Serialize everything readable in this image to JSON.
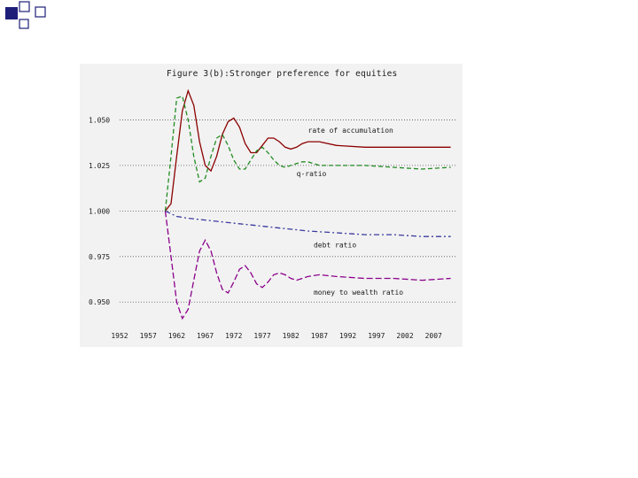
{
  "colors": {
    "slide_square_dark": "#1f1f7a",
    "slide_square_light": "#ffffff",
    "panel": "#f2f2f2"
  },
  "chart_data": {
    "type": "line",
    "title": "Figure 3(b):Stronger preference for equities",
    "xlabel": "",
    "ylabel": "",
    "xlim": [
      1952,
      2011
    ],
    "ylim": [
      0.937,
      1.075
    ],
    "x_ticks": [
      "1952",
      "1957",
      "1962",
      "1967",
      "1972",
      "1977",
      "1982",
      "1987",
      "1992",
      "1997",
      "2002",
      "2007"
    ],
    "y_ticks": [
      {
        "value": 1.05,
        "label": "1.050"
      },
      {
        "value": 1.025,
        "label": "1.025"
      },
      {
        "value": 1.0,
        "label": "1.000"
      },
      {
        "value": 0.975,
        "label": "0.975"
      },
      {
        "value": 0.95,
        "label": "0.950"
      }
    ],
    "grid": "horizontal",
    "series": [
      {
        "name": "rate of accumulation",
        "color": "#8b0000",
        "dash": "",
        "label_at": [
          1985,
          1.043
        ],
        "points": [
          [
            1960,
            1.0
          ],
          [
            1961,
            1.004
          ],
          [
            1962,
            1.03
          ],
          [
            1963,
            1.055
          ],
          [
            1964,
            1.066
          ],
          [
            1965,
            1.058
          ],
          [
            1966,
            1.038
          ],
          [
            1967,
            1.025
          ],
          [
            1968,
            1.022
          ],
          [
            1969,
            1.03
          ],
          [
            1970,
            1.042
          ],
          [
            1971,
            1.049
          ],
          [
            1972,
            1.051
          ],
          [
            1973,
            1.046
          ],
          [
            1974,
            1.037
          ],
          [
            1975,
            1.032
          ],
          [
            1976,
            1.032
          ],
          [
            1977,
            1.036
          ],
          [
            1978,
            1.04
          ],
          [
            1979,
            1.04
          ],
          [
            1980,
            1.038
          ],
          [
            1981,
            1.035
          ],
          [
            1982,
            1.034
          ],
          [
            1983,
            1.035
          ],
          [
            1984,
            1.037
          ],
          [
            1985,
            1.038
          ],
          [
            1987,
            1.038
          ],
          [
            1990,
            1.036
          ],
          [
            1995,
            1.035
          ],
          [
            2000,
            1.035
          ],
          [
            2005,
            1.035
          ],
          [
            2010,
            1.035
          ]
        ]
      },
      {
        "name": "q-ratio",
        "color": "#228b22",
        "dash": "5 3",
        "label_at": [
          1983,
          1.019
        ],
        "points": [
          [
            1960,
            1.0
          ],
          [
            1961,
            1.03
          ],
          [
            1962,
            1.062
          ],
          [
            1963,
            1.063
          ],
          [
            1964,
            1.05
          ],
          [
            1965,
            1.03
          ],
          [
            1966,
            1.016
          ],
          [
            1967,
            1.018
          ],
          [
            1968,
            1.03
          ],
          [
            1969,
            1.04
          ],
          [
            1970,
            1.042
          ],
          [
            1971,
            1.036
          ],
          [
            1972,
            1.028
          ],
          [
            1973,
            1.023
          ],
          [
            1974,
            1.023
          ],
          [
            1975,
            1.028
          ],
          [
            1976,
            1.033
          ],
          [
            1977,
            1.035
          ],
          [
            1978,
            1.032
          ],
          [
            1979,
            1.028
          ],
          [
            1980,
            1.025
          ],
          [
            1981,
            1.024
          ],
          [
            1982,
            1.025
          ],
          [
            1983,
            1.026
          ],
          [
            1984,
            1.027
          ],
          [
            1985,
            1.027
          ],
          [
            1987,
            1.025
          ],
          [
            1990,
            1.025
          ],
          [
            1995,
            1.025
          ],
          [
            2000,
            1.024
          ],
          [
            2005,
            1.023
          ],
          [
            2010,
            1.024
          ]
        ]
      },
      {
        "name": "debt ratio",
        "color": "#3a3aa0",
        "dash": "6 3 2 3",
        "label_at": [
          1986,
          0.98
        ],
        "points": [
          [
            1960,
            1.0
          ],
          [
            1962,
            0.997
          ],
          [
            1964,
            0.996
          ],
          [
            1967,
            0.995
          ],
          [
            1970,
            0.994
          ],
          [
            1973,
            0.993
          ],
          [
            1976,
            0.992
          ],
          [
            1979,
            0.991
          ],
          [
            1982,
            0.99
          ],
          [
            1985,
            0.989
          ],
          [
            1990,
            0.988
          ],
          [
            1995,
            0.987
          ],
          [
            2000,
            0.987
          ],
          [
            2005,
            0.986
          ],
          [
            2010,
            0.986
          ]
        ]
      },
      {
        "name": "money to wealth ratio",
        "color": "#8b008b",
        "dash": "7 3",
        "label_at": [
          1986,
          0.954
        ],
        "points": [
          [
            1960,
            1.0
          ],
          [
            1961,
            0.975
          ],
          [
            1962,
            0.95
          ],
          [
            1963,
            0.941
          ],
          [
            1964,
            0.946
          ],
          [
            1965,
            0.962
          ],
          [
            1966,
            0.978
          ],
          [
            1967,
            0.984
          ],
          [
            1968,
            0.978
          ],
          [
            1969,
            0.966
          ],
          [
            1970,
            0.957
          ],
          [
            1971,
            0.955
          ],
          [
            1972,
            0.961
          ],
          [
            1973,
            0.968
          ],
          [
            1974,
            0.97
          ],
          [
            1975,
            0.966
          ],
          [
            1976,
            0.96
          ],
          [
            1977,
            0.958
          ],
          [
            1978,
            0.961
          ],
          [
            1979,
            0.965
          ],
          [
            1980,
            0.966
          ],
          [
            1981,
            0.965
          ],
          [
            1982,
            0.963
          ],
          [
            1983,
            0.962
          ],
          [
            1984,
            0.963
          ],
          [
            1985,
            0.964
          ],
          [
            1987,
            0.965
          ],
          [
            1990,
            0.964
          ],
          [
            1995,
            0.963
          ],
          [
            2000,
            0.963
          ],
          [
            2005,
            0.962
          ],
          [
            2010,
            0.963
          ]
        ]
      }
    ]
  }
}
